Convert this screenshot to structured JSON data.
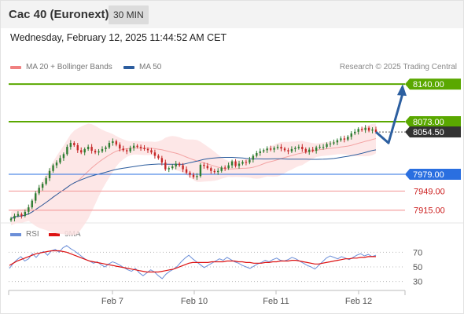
{
  "header": {
    "instrument": "Cac 40 (Euronext)",
    "timeframe": "30 MIN",
    "datetime": "Wednesday, February 12, 2025 11:44:52 AM CET"
  },
  "legend": {
    "bb_label": "MA 20 + Bollinger Bands",
    "ma50_label": "MA 50",
    "bb_color": "#f08080",
    "ma50_color": "#2c5d9e",
    "credit": "Research © 2025 Trading Central"
  },
  "colors": {
    "resistance": "#5aa800",
    "support": "#2a6fe0",
    "secondary_level": "#f4a0a0",
    "secondary_text": "#cc1f1f",
    "arrow": "#2c5fa0",
    "candle_up": "#2e7d32",
    "candle_down": "#c62828",
    "band_fill": "#fde3e3",
    "price_tag": "#333333",
    "rsi": "#6c8fd8",
    "rsi_ma": "#dd1111"
  },
  "chart_data": [
    {
      "type": "candlestick",
      "title": "Cac 40 (Euronext)",
      "timeframe": "30 MIN",
      "ylim": [
        7895,
        8150
      ],
      "x_ticks": [
        "Feb 7",
        "Feb 10",
        "Feb 11",
        "Feb 12"
      ],
      "levels": [
        {
          "value": 8140.0,
          "label": "8140.00",
          "kind": "resistance"
        },
        {
          "value": 8073.0,
          "label": "8073.00",
          "kind": "resistance"
        },
        {
          "value": 7979.0,
          "label": "7979.00",
          "kind": "support"
        },
        {
          "value": 7949.0,
          "label": "7949.00",
          "kind": "secondary"
        },
        {
          "value": 7915.0,
          "label": "7915.00",
          "kind": "secondary"
        }
      ],
      "last_price": {
        "value": 8054.5,
        "label": "8054.50"
      },
      "close_series": [
        7900,
        7905,
        7908,
        7905,
        7912,
        7920,
        7932,
        7945,
        7955,
        7962,
        7972,
        7985,
        7995,
        8000,
        8008,
        8015,
        8028,
        8035,
        8031,
        8022,
        8018,
        8024,
        8028,
        8021,
        8018,
        8020,
        8024,
        8027,
        8035,
        8038,
        8032,
        8025,
        8022,
        8020,
        8026,
        8030,
        8028,
        8026,
        8024,
        8022,
        8018,
        8012,
        8008,
        8000,
        7988,
        7990,
        7993,
        7998,
        7995,
        7988,
        7982,
        7978,
        7974,
        7976,
        7996,
        7994,
        7990,
        7985,
        7983,
        7985,
        7991,
        7990,
        7995,
        8002,
        7994,
        7998,
        8001,
        8000,
        8005,
        8012,
        8017,
        8020,
        8022,
        8025,
        8023,
        8026,
        8028,
        8025,
        8022,
        8020,
        8024,
        8026,
        8028,
        8024,
        8019,
        8023,
        8021,
        8027,
        8028,
        8028,
        8033,
        8034,
        8036,
        8040,
        8043,
        8041,
        8046,
        8052,
        8055,
        8060,
        8058,
        8062,
        8057,
        8059,
        8054.5
      ],
      "projection": [
        8054.5,
        8035,
        8140
      ]
    },
    {
      "type": "line",
      "title": "RSI",
      "series": [
        {
          "name": "RSI",
          "values": [
            48,
            55,
            60,
            64,
            58,
            61,
            68,
            63,
            69,
            71,
            66,
            72,
            74,
            70,
            76,
            79,
            75,
            72,
            68,
            64,
            60,
            58,
            55,
            57,
            53,
            50,
            54,
            57,
            55,
            52,
            49,
            46,
            44,
            48,
            42,
            38,
            42,
            46,
            43,
            38,
            34,
            40,
            44,
            47,
            51,
            57,
            62,
            66,
            61,
            57,
            53,
            49,
            52,
            55,
            58,
            61,
            59,
            63,
            60,
            57,
            55,
            52,
            50,
            48,
            51,
            54,
            56,
            59,
            57,
            60,
            62,
            59,
            58,
            60,
            63,
            61,
            58,
            55,
            52,
            50,
            47,
            52,
            57,
            62,
            65,
            63,
            61,
            64,
            62,
            60,
            63,
            66,
            68,
            65,
            67,
            64,
            66
          ]
        },
        {
          "name": "9MA",
          "values": [
            52,
            55,
            58,
            60,
            62,
            64,
            66,
            68,
            69,
            70,
            71,
            72,
            72,
            72,
            71,
            70,
            68,
            66,
            64,
            62,
            60,
            58,
            57,
            56,
            55,
            54,
            53,
            52,
            51,
            50,
            49,
            48,
            47,
            46,
            45,
            44,
            43,
            43,
            43,
            43,
            44,
            45,
            46,
            47,
            49,
            51,
            53,
            55,
            56,
            56,
            56,
            56,
            56,
            57,
            57,
            57,
            57,
            58,
            58,
            58,
            57,
            57,
            56,
            56,
            55,
            55,
            55,
            56,
            56,
            57,
            57,
            58,
            58,
            58,
            59,
            59,
            58,
            57,
            56,
            55,
            54,
            54,
            55,
            56,
            57,
            58,
            59,
            60,
            61,
            61,
            62,
            62,
            63,
            63,
            64,
            64,
            64
          ]
        }
      ],
      "ylim": [
        20,
        80
      ],
      "y_ticks": [
        "70",
        "50",
        "30"
      ]
    }
  ]
}
